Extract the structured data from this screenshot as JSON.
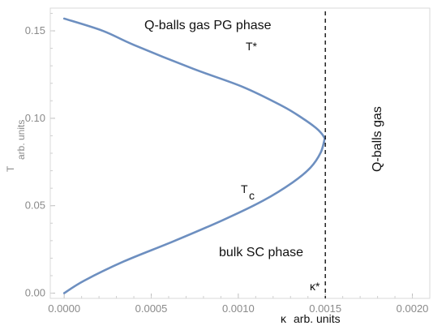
{
  "chart_data": {
    "type": "line",
    "title": "",
    "xlabel": "κ",
    "xlabel_unit": "arb. units",
    "ylabel": "T",
    "ylabel_unit": "arb. units",
    "xlim": [
      -8e-05,
      0.0021
    ],
    "ylim": [
      -0.003,
      0.163
    ],
    "xticks": [
      0.0,
      0.0005,
      0.001,
      0.0015,
      0.002
    ],
    "xtick_labels": [
      "0.0000",
      "0.0005",
      "0.0010",
      "0.0015",
      "0.0020"
    ],
    "yticks": [
      0.0,
      0.05,
      0.1,
      0.15
    ],
    "ytick_labels": [
      "0.00",
      "0.05",
      "0.10",
      "0.15"
    ],
    "grid": false,
    "series": [
      {
        "name": "T*",
        "color": "#6d8fc0",
        "x": [
          0.0,
          0.000222,
          0.000399,
          0.000741,
          0.001027,
          0.001255,
          0.001369,
          0.001446,
          0.001479,
          0.001497
        ],
        "y": [
          0.157,
          0.15,
          0.142,
          0.1283,
          0.1179,
          0.1069,
          0.1,
          0.0945,
          0.0912,
          0.0885
        ]
      },
      {
        "name": "Tc",
        "color": "#6d8fc0",
        "x": [
          0.001497,
          0.001473,
          0.001414,
          0.001312,
          0.001141,
          0.000912,
          0.000627,
          0.000342,
          0.000114,
          0.0
        ],
        "y": [
          0.0885,
          0.0803,
          0.0717,
          0.0633,
          0.0528,
          0.0418,
          0.0296,
          0.0181,
          0.0071,
          0.0
        ]
      }
    ],
    "vline": {
      "x": 0.0015,
      "label": "κ*",
      "style": "dashed",
      "color": "#111111"
    },
    "annotations": [
      {
        "id": "pg-phase",
        "text": "Q-balls gas PG phase"
      },
      {
        "id": "tstar",
        "text": "T*"
      },
      {
        "id": "tc-main",
        "text": "T"
      },
      {
        "id": "tc-sub",
        "text": "c"
      },
      {
        "id": "sc-phase",
        "text": "bulk SC phase"
      },
      {
        "id": "qballs",
        "text": "Q-balls gas"
      }
    ]
  }
}
